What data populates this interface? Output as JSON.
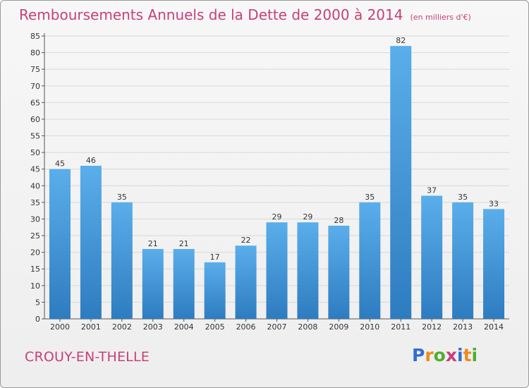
{
  "title": "Remboursements Annuels de la Dette de 2000 à 2014",
  "unit": "(en milliers d'€)",
  "city": "CROUY-EN-THELLE",
  "logo": {
    "text": "Proxiti",
    "letters": [
      {
        "ch": "P",
        "color": "#2f6fd1"
      },
      {
        "ch": "r",
        "color": "#f08a1c"
      },
      {
        "ch": "o",
        "color": "#4caf2e"
      },
      {
        "ch": "x",
        "color": "#c7407a"
      },
      {
        "ch": "i",
        "color": "#2f6fd1"
      },
      {
        "ch": "t",
        "color": "#f08a1c"
      },
      {
        "ch": "i",
        "color": "#4caf2e"
      }
    ]
  },
  "chart_data": {
    "type": "bar",
    "categories": [
      "2000",
      "2001",
      "2002",
      "2003",
      "2004",
      "2005",
      "2006",
      "2007",
      "2008",
      "2009",
      "2010",
      "2011",
      "2012",
      "2013",
      "2014"
    ],
    "values": [
      45,
      46,
      35,
      21,
      21,
      17,
      22,
      29,
      29,
      28,
      35,
      82,
      37,
      35,
      33
    ],
    "ylim": [
      0,
      85
    ],
    "yticks": [
      0,
      5,
      10,
      15,
      20,
      25,
      30,
      35,
      40,
      45,
      50,
      55,
      60,
      65,
      70,
      75,
      80,
      85
    ],
    "grid": true,
    "bar_color": "#3d94d6"
  }
}
